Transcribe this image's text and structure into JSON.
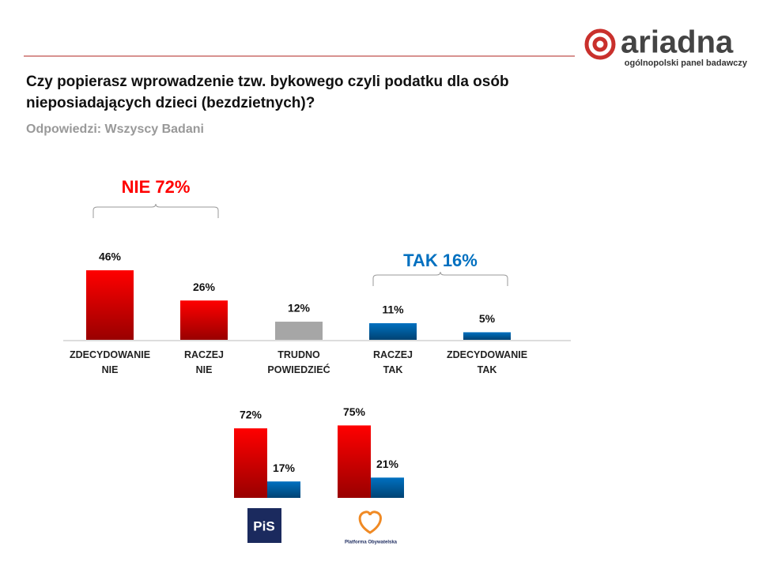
{
  "header": {
    "logo": "ariadna",
    "tagline": "ogólnopolski panel badawczy",
    "title": "Czy popierasz wprowadzenie tzw. bykowego czyli podatku dla osób nieposiadających dzieci (bezdzietnych)?",
    "subtitle": "Odpowiedzi:  Wszyscy  Badani"
  },
  "chart_data": [
    {
      "type": "bar",
      "categories": [
        "ZDECYDOWANIE NIE",
        "RACZEJ NIE",
        "TRUDNO POWIEDZIEĆ",
        "RACZEJ TAK",
        "ZDECYDOWANIE TAK"
      ],
      "values": [
        46,
        26,
        12,
        11,
        5
      ],
      "value_labels": [
        "46%",
        "26%",
        "12%",
        "11%",
        "5%"
      ],
      "colors": [
        "#ff0000",
        "#ff0000",
        "#a6a6a6",
        "#0070c0",
        "#0070c0"
      ],
      "annotations": [
        {
          "text": "NIE 72%",
          "color": "#ff0000"
        },
        {
          "text": "TAK 16%",
          "color": "#0070c0"
        }
      ]
    },
    {
      "type": "bar",
      "logo": "PiS",
      "values": [
        72,
        17
      ],
      "value_labels": [
        "72%",
        "17%"
      ],
      "colors": [
        "#ff0000",
        "#0070c0"
      ]
    },
    {
      "type": "bar",
      "logo": "Platforma Obywatelska",
      "values": [
        75,
        21
      ],
      "value_labels": [
        "75%",
        "21%"
      ],
      "colors": [
        "#ff0000",
        "#0070c0"
      ]
    }
  ]
}
